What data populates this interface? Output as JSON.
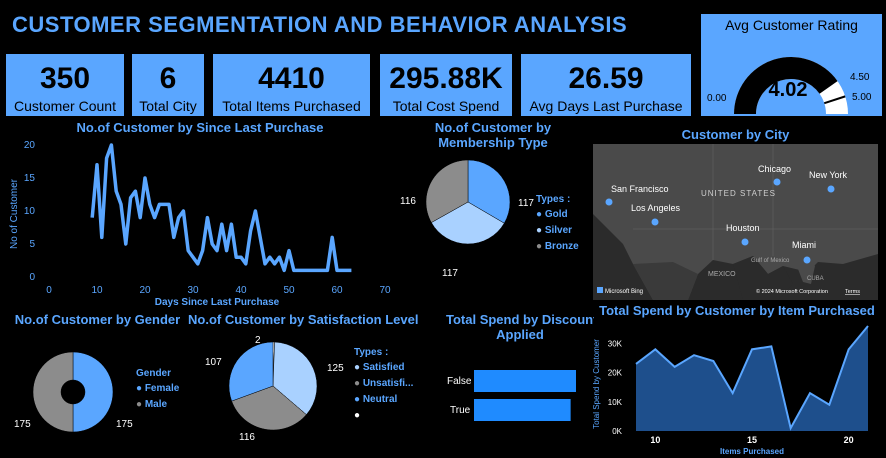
{
  "header": {
    "title": "CUSTOMER SEGMENTATION AND BEHAVIOR ANALYSIS"
  },
  "kpis": [
    {
      "value": "350",
      "label": "Customer Count"
    },
    {
      "value": "6",
      "label": "Total City"
    },
    {
      "value": "4410",
      "label": "Total Items Purchased"
    },
    {
      "value": "295.88K",
      "label": "Total Cost Spend"
    },
    {
      "value": "26.59",
      "label": "Avg Days Last Purchase"
    }
  ],
  "gauge": {
    "title": "Avg Customer Rating",
    "value": "4.02",
    "min": "0.00",
    "max": "5.00",
    "target": "4.50",
    "fraction": 0.804
  },
  "line_chart": {
    "title": "No.of Customer by Since Last Purchase",
    "xlabel": "Days Since Last Purchase",
    "ylabel": "No of Customer",
    "x_ticks": [
      "0",
      "10",
      "20",
      "30",
      "40",
      "50",
      "60",
      "70"
    ],
    "y_ticks": [
      "0",
      "5",
      "10",
      "15",
      "20"
    ]
  },
  "membership": {
    "title_line1": "No.of Customer by",
    "title_line2": "Membership Type",
    "legend_title": "Types :",
    "legend": [
      "Gold",
      "Silver",
      "Bronze"
    ],
    "labels": [
      "117",
      "117",
      "116"
    ]
  },
  "map": {
    "title": "Customer by City",
    "cities": [
      "San Francisco",
      "Los Angeles",
      "Chicago",
      "New York",
      "Houston",
      "Miami"
    ],
    "country": "UNITED STATES",
    "mexico": "MEXICO",
    "gulf": "Gulf of Mexico",
    "cuba": "CUBA",
    "brand": "Microsoft Bing",
    "copyright": "© 2024 Microsoft Corporation",
    "terms": "Terms"
  },
  "gender": {
    "title": "No.of Customer by Gender",
    "legend_title": "Gender",
    "legend": [
      "Female",
      "Male"
    ],
    "labels": [
      "175",
      "175"
    ]
  },
  "satisfaction": {
    "title": "No.of Customer by Satisfaction Level",
    "legend_title": "Types :",
    "legend": [
      "Satisfied",
      "Unsatisfi...",
      "Neutral",
      ""
    ],
    "labels": [
      "2",
      "125",
      "116",
      "107"
    ]
  },
  "discount": {
    "title_line1": "Total Spend by Discount",
    "title_line2": "Applied",
    "categories": [
      "False",
      "True"
    ]
  },
  "area": {
    "title": "Total Spend by Customer by Item Purchased",
    "xlabel": "Items Purchased",
    "ylabel": "Total Spend by Customer",
    "x_ticks": [
      "10",
      "15",
      "20"
    ],
    "y_ticks": [
      "0K",
      "10K",
      "20K",
      "30K"
    ]
  },
  "colors": {
    "accent": "#5aa6ff",
    "light": "#a9d1ff",
    "grey": "#8c8c8c",
    "bar": "#1f8bff",
    "area_fill": "#1e4f8c"
  },
  "chart_data": [
    {
      "type": "line",
      "title": "No.of Customer by Since Last Purchase",
      "xlabel": "Days Since Last Purchase",
      "ylabel": "No of Customer",
      "xlim": [
        0,
        70
      ],
      "ylim": [
        0,
        20
      ],
      "x": [
        9,
        10,
        11,
        12,
        13,
        14,
        15,
        16,
        17,
        18,
        19,
        20,
        21,
        22,
        23,
        24,
        25,
        26,
        27,
        28,
        29,
        30,
        31,
        32,
        33,
        34,
        35,
        36,
        37,
        38,
        39,
        40,
        41,
        42,
        43,
        44,
        45,
        46,
        47,
        48,
        49,
        50,
        51,
        52,
        53,
        54,
        55,
        56,
        57,
        58,
        59,
        60,
        61,
        62,
        63
      ],
      "values": [
        9,
        17,
        6,
        18,
        20,
        13,
        11,
        5,
        12,
        13,
        9,
        15,
        11,
        9,
        11,
        11,
        11,
        6,
        9,
        10,
        4,
        3,
        2,
        4,
        9,
        5,
        4,
        8,
        4,
        8,
        3,
        3,
        2,
        7,
        10,
        6,
        2,
        3,
        2,
        3,
        1,
        4,
        1,
        1,
        1,
        1,
        1,
        1,
        1,
        1,
        6,
        1,
        1,
        1,
        1
      ]
    },
    {
      "type": "pie",
      "title": "No.of Customer by Membership Type",
      "categories": [
        "Gold",
        "Silver",
        "Bronze"
      ],
      "values": [
        117,
        117,
        116
      ]
    },
    {
      "type": "pie",
      "title": "No.of Customer by Gender",
      "categories": [
        "Female",
        "Male"
      ],
      "values": [
        175,
        175
      ]
    },
    {
      "type": "pie",
      "title": "No.of Customer by Satisfaction Level",
      "categories": [
        "Satisfied",
        "Unsatisfi...",
        "Neutral",
        ""
      ],
      "values": [
        125,
        116,
        107,
        2
      ]
    },
    {
      "type": "bar",
      "title": "Total Spend by Discount Applied",
      "categories": [
        "False",
        "True"
      ],
      "values": [
        152,
        144
      ]
    },
    {
      "type": "area",
      "title": "Total Spend by Customer by Item Purchased",
      "xlabel": "Items Purchased",
      "ylabel": "Total Spend by Customer",
      "x": [
        9,
        10,
        11,
        12,
        13,
        14,
        15,
        16,
        17,
        18,
        19,
        20,
        21
      ],
      "values": [
        23,
        28,
        22,
        26,
        24,
        13,
        28,
        29,
        1,
        13,
        9,
        28,
        36
      ],
      "ylim": [
        0,
        36
      ],
      "xlim": [
        9,
        21
      ]
    }
  ]
}
